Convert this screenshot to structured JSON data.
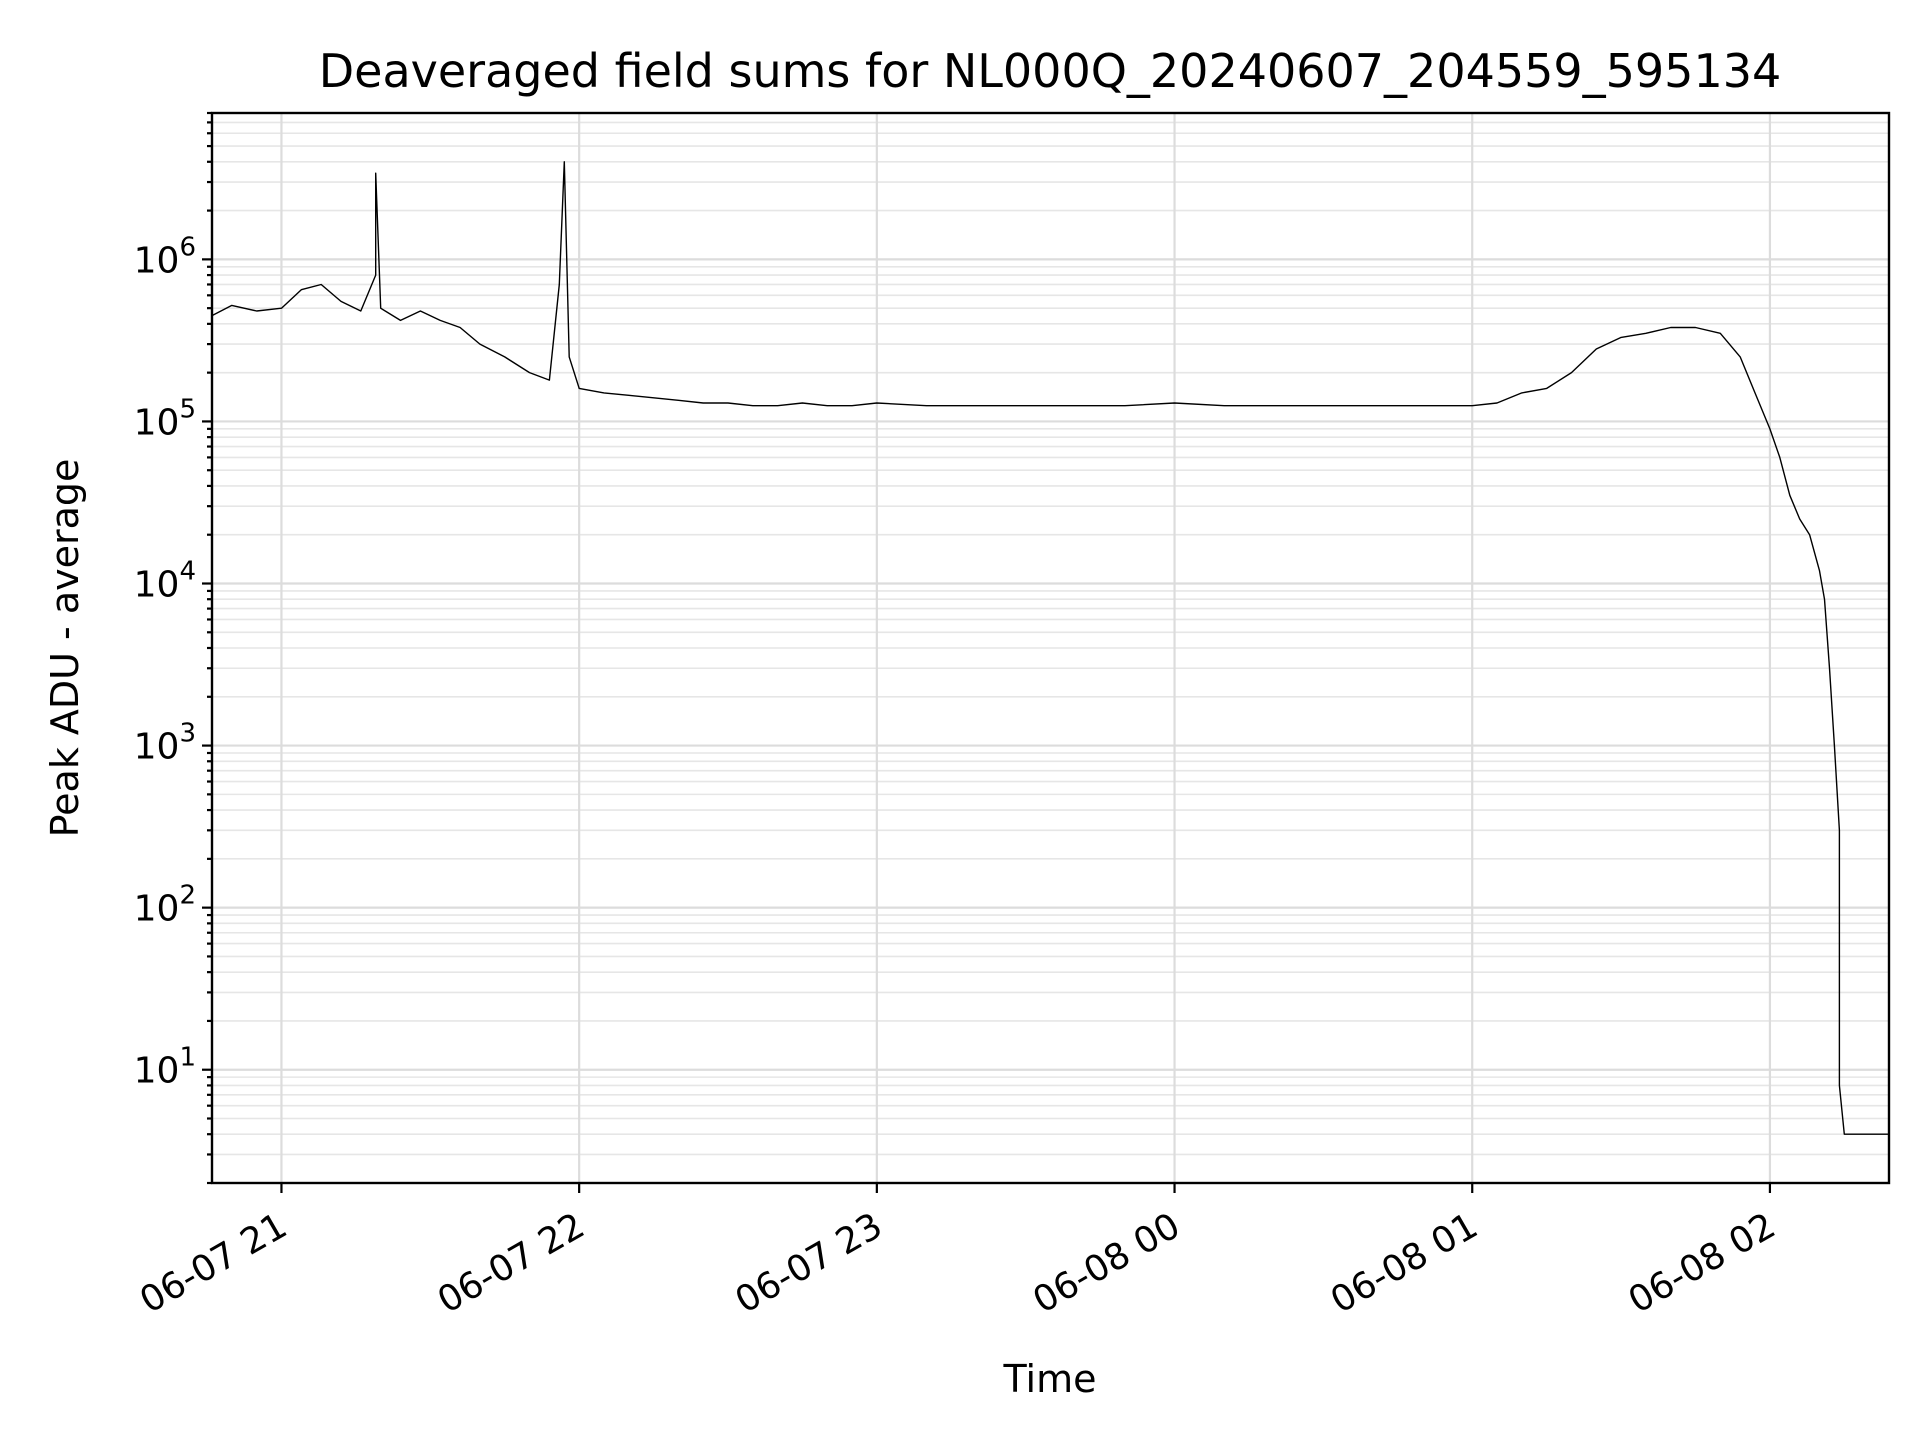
{
  "chart_data": {
    "type": "line",
    "title": "Deaveraged field sums for NL000Q_20240607_204559_595134",
    "xlabel": "Time",
    "ylabel": "Peak ADU - average",
    "yscale": "log",
    "xlim": [
      "2024-06-07 20:46",
      "2024-06-08 02:24"
    ],
    "ylim": [
      2,
      8000000
    ],
    "grid": true,
    "x_ticks": [
      {
        "t": "2024-06-07 21:00",
        "label": "06-07 21"
      },
      {
        "t": "2024-06-07 22:00",
        "label": "06-07 22"
      },
      {
        "t": "2024-06-07 23:00",
        "label": "06-07 23"
      },
      {
        "t": "2024-06-08 00:00",
        "label": "06-08 00"
      },
      {
        "t": "2024-06-08 01:00",
        "label": "06-08 01"
      },
      {
        "t": "2024-06-08 02:00",
        "label": "06-08 02"
      }
    ],
    "y_ticks": [
      {
        "value": 10,
        "base": "10",
        "exp": "1"
      },
      {
        "value": 100,
        "base": "10",
        "exp": "2"
      },
      {
        "value": 1000,
        "base": "10",
        "exp": "3"
      },
      {
        "value": 10000,
        "base": "10",
        "exp": "4"
      },
      {
        "value": 100000,
        "base": "10",
        "exp": "5"
      },
      {
        "value": 1000000,
        "base": "10",
        "exp": "6"
      }
    ],
    "series": [
      {
        "color": "#000000",
        "points": [
          [
            "2024-06-07 20:46",
            450000
          ],
          [
            "2024-06-07 20:50",
            520000
          ],
          [
            "2024-06-07 20:55",
            480000
          ],
          [
            "2024-06-07 21:00",
            500000
          ],
          [
            "2024-06-07 21:04",
            650000
          ],
          [
            "2024-06-07 21:08",
            700000
          ],
          [
            "2024-06-07 21:12",
            550000
          ],
          [
            "2024-06-07 21:16",
            480000
          ],
          [
            "2024-06-07 21:19",
            800000
          ],
          [
            "2024-06-07 21:19",
            3400000
          ],
          [
            "2024-06-07 21:20",
            500000
          ],
          [
            "2024-06-07 21:24",
            420000
          ],
          [
            "2024-06-07 21:28",
            480000
          ],
          [
            "2024-06-07 21:32",
            420000
          ],
          [
            "2024-06-07 21:36",
            380000
          ],
          [
            "2024-06-07 21:40",
            300000
          ],
          [
            "2024-06-07 21:45",
            250000
          ],
          [
            "2024-06-07 21:50",
            200000
          ],
          [
            "2024-06-07 21:54",
            180000
          ],
          [
            "2024-06-07 21:56",
            700000
          ],
          [
            "2024-06-07 21:57",
            4000000
          ],
          [
            "2024-06-07 21:58",
            250000
          ],
          [
            "2024-06-07 22:00",
            160000
          ],
          [
            "2024-06-07 22:05",
            150000
          ],
          [
            "2024-06-07 22:10",
            145000
          ],
          [
            "2024-06-07 22:15",
            140000
          ],
          [
            "2024-06-07 22:20",
            135000
          ],
          [
            "2024-06-07 22:25",
            130000
          ],
          [
            "2024-06-07 22:30",
            130000
          ],
          [
            "2024-06-07 22:35",
            125000
          ],
          [
            "2024-06-07 22:40",
            125000
          ],
          [
            "2024-06-07 22:45",
            130000
          ],
          [
            "2024-06-07 22:50",
            125000
          ],
          [
            "2024-06-07 22:55",
            125000
          ],
          [
            "2024-06-07 23:00",
            130000
          ],
          [
            "2024-06-07 23:10",
            125000
          ],
          [
            "2024-06-07 23:20",
            125000
          ],
          [
            "2024-06-07 23:30",
            125000
          ],
          [
            "2024-06-07 23:40",
            125000
          ],
          [
            "2024-06-07 23:50",
            125000
          ],
          [
            "2024-06-08 00:00",
            130000
          ],
          [
            "2024-06-08 00:10",
            125000
          ],
          [
            "2024-06-08 00:20",
            125000
          ],
          [
            "2024-06-08 00:30",
            125000
          ],
          [
            "2024-06-08 00:40",
            125000
          ],
          [
            "2024-06-08 00:50",
            125000
          ],
          [
            "2024-06-08 01:00",
            125000
          ],
          [
            "2024-06-08 01:05",
            130000
          ],
          [
            "2024-06-08 01:10",
            150000
          ],
          [
            "2024-06-08 01:15",
            160000
          ],
          [
            "2024-06-08 01:20",
            200000
          ],
          [
            "2024-06-08 01:25",
            280000
          ],
          [
            "2024-06-08 01:30",
            330000
          ],
          [
            "2024-06-08 01:35",
            350000
          ],
          [
            "2024-06-08 01:40",
            380000
          ],
          [
            "2024-06-08 01:45",
            380000
          ],
          [
            "2024-06-08 01:50",
            350000
          ],
          [
            "2024-06-08 01:54",
            250000
          ],
          [
            "2024-06-08 01:57",
            150000
          ],
          [
            "2024-06-08 02:00",
            90000
          ],
          [
            "2024-06-08 02:02",
            60000
          ],
          [
            "2024-06-08 02:04",
            35000
          ],
          [
            "2024-06-08 02:06",
            25000
          ],
          [
            "2024-06-08 02:08",
            20000
          ],
          [
            "2024-06-08 02:10",
            12000
          ],
          [
            "2024-06-08 02:11",
            8000
          ],
          [
            "2024-06-08 02:12",
            3000
          ],
          [
            "2024-06-08 02:13",
            1000
          ],
          [
            "2024-06-08 02:14",
            300
          ],
          [
            "2024-06-08 02:14",
            8
          ],
          [
            "2024-06-08 02:15",
            4
          ],
          [
            "2024-06-08 02:24",
            4
          ]
        ]
      }
    ]
  }
}
